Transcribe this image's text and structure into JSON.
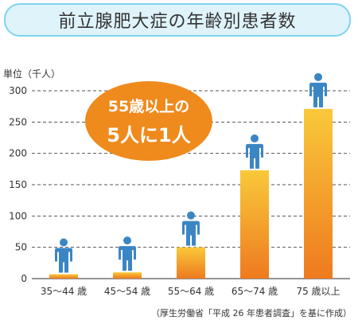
{
  "title": "前立腺肥大症の年齢別患者数",
  "callout": {
    "line1": "55歳以上の",
    "line2": "5人に1人"
  },
  "source": "（厚生労働省「平成 26 年患者調査」を基に作成）",
  "colors": {
    "bar_top": "#f9c93a",
    "bar_bottom": "#ee7a1f",
    "figure": "#3a86c5",
    "callout": "#ef8a1c",
    "grid": "#555555",
    "title_bg": "#dff3fb",
    "title_border": "#7fd3ee"
  },
  "chart_data": {
    "type": "bar",
    "categories": [
      "35～44 歳",
      "45～54 歳",
      "55～64 歳",
      "65～74 歳",
      "75 歳以上"
    ],
    "values": [
      7,
      10,
      50,
      173,
      271
    ],
    "ylabel": "単位（千人）",
    "ylim": [
      0,
      300
    ],
    "yticks": [
      0,
      50,
      100,
      150,
      200,
      250,
      300
    ],
    "grid": true,
    "icon": "person-icon"
  }
}
